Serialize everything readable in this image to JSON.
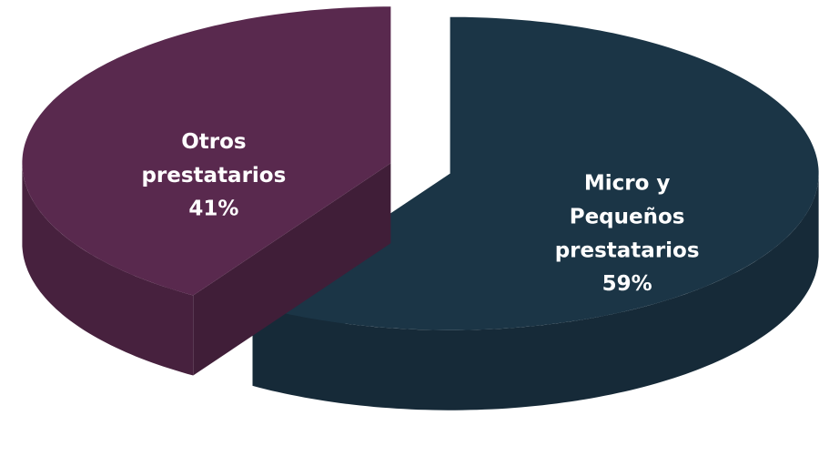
{
  "chart_data": {
    "type": "pie",
    "categories": [
      "Micro y Pequeños prestatarios",
      "Otros prestatarios"
    ],
    "values": [
      59,
      41
    ],
    "value_labels": [
      "59%",
      "41%"
    ],
    "colors": [
      "#1b3546",
      "#59294e"
    ]
  }
}
